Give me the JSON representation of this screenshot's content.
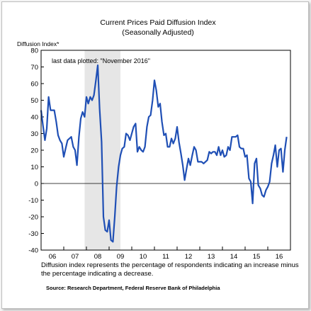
{
  "chart_data": {
    "type": "line",
    "title": "Current Prices Paid Diffusion Index",
    "subtitle": "(Seasonally Adjusted)",
    "ylabel": "Diffusion Index*",
    "ylim": [
      -40,
      80
    ],
    "yticks": [
      80,
      70,
      60,
      50,
      40,
      30,
      20,
      10,
      0,
      -10,
      -20,
      -30,
      -40
    ],
    "xlim": [
      2006,
      2017
    ],
    "xtick_labels": [
      "06",
      "07",
      "08",
      "09",
      "10",
      "11",
      "12",
      "13",
      "14",
      "15",
      "16"
    ],
    "grid": false,
    "annotation": "last data plotted: \"November 2016\"",
    "recession": {
      "start": 2007.92,
      "end": 2009.5
    },
    "footnote_line1": "Diffusion index represents the percentage of respondents indicating an increase minus",
    "footnote_line2": "the percentage indicating a decrease.",
    "source": "Source: Research Department, Federal Reserve Bank of Philadelphia",
    "line_color": "#1f4fb5",
    "recession_color": "#e6e6e6",
    "series": [
      {
        "x": [
          2006.0,
          2006.08,
          2006.17,
          2006.25,
          2006.33,
          2006.42,
          2006.5,
          2006.58,
          2006.67,
          2006.75,
          2006.83,
          2006.92,
          2007.0,
          2007.08,
          2007.17,
          2007.25,
          2007.33,
          2007.42,
          2007.5,
          2007.58,
          2007.67,
          2007.75,
          2007.83,
          2007.92,
          2008.0,
          2008.08,
          2008.17,
          2008.25,
          2008.33,
          2008.42,
          2008.5,
          2008.58,
          2008.67,
          2008.75,
          2008.83,
          2008.92,
          2009.0,
          2009.08,
          2009.17,
          2009.25,
          2009.33,
          2009.42,
          2009.5,
          2009.58,
          2009.67,
          2009.75,
          2009.83,
          2009.92,
          2010.0,
          2010.08,
          2010.17,
          2010.25,
          2010.33,
          2010.42,
          2010.5,
          2010.58,
          2010.67,
          2010.75,
          2010.83,
          2010.92,
          2011.0,
          2011.08,
          2011.17,
          2011.25,
          2011.33,
          2011.42,
          2011.5,
          2011.58,
          2011.67,
          2011.75,
          2011.83,
          2011.92,
          2012.0,
          2012.08,
          2012.17,
          2012.25,
          2012.33,
          2012.42,
          2012.5,
          2012.58,
          2012.67,
          2012.75,
          2012.83,
          2012.92,
          2013.0,
          2013.08,
          2013.17,
          2013.25,
          2013.33,
          2013.42,
          2013.5,
          2013.58,
          2013.67,
          2013.75,
          2013.83,
          2013.92,
          2014.0,
          2014.08,
          2014.17,
          2014.25,
          2014.33,
          2014.42,
          2014.5,
          2014.58,
          2014.67,
          2014.75,
          2014.83,
          2014.92,
          2015.0,
          2015.08,
          2015.17,
          2015.25,
          2015.33,
          2015.42,
          2015.5,
          2015.58,
          2015.67,
          2015.75,
          2015.83,
          2015.92,
          2016.0,
          2016.08,
          2016.17,
          2016.25,
          2016.33,
          2016.42,
          2016.5,
          2016.58,
          2016.67,
          2016.75,
          2016.83
        ],
        "y": [
          44,
          35,
          26,
          33,
          52,
          44,
          44,
          44,
          37,
          29,
          26,
          24,
          16,
          21,
          26,
          27,
          28,
          22,
          20,
          11,
          28,
          39,
          43,
          40,
          52,
          48,
          52,
          50,
          53,
          62,
          71,
          45,
          25,
          -20,
          -28,
          -29,
          -22,
          -34,
          -35,
          -20,
          -2,
          10,
          17,
          21,
          22,
          30,
          29,
          26,
          30,
          34,
          36,
          19,
          22,
          20,
          19,
          22,
          34,
          40,
          41,
          50,
          62,
          56,
          46,
          48,
          37,
          29,
          30,
          22,
          22,
          27,
          24,
          27,
          34,
          25,
          18,
          11,
          2,
          9,
          15,
          11,
          17,
          22,
          20,
          13,
          13,
          13,
          12,
          13,
          14,
          19,
          18,
          19,
          19,
          17,
          22,
          17,
          20,
          16,
          17,
          22,
          20,
          28,
          28,
          28,
          29,
          22,
          21,
          21,
          16,
          17,
          3,
          1,
          -12,
          12,
          15,
          -1,
          -3,
          -7,
          -8,
          -4,
          -2,
          1,
          12,
          17,
          23,
          10,
          20,
          21,
          7,
          20,
          28
        ]
      }
    ]
  }
}
